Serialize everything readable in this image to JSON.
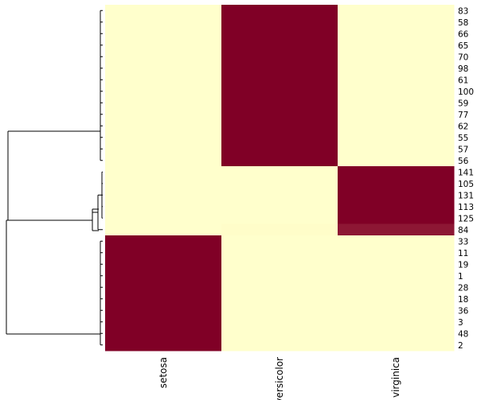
{
  "chart_data": {
    "type": "heatmap",
    "title": "",
    "xlabel": "",
    "ylabel": "",
    "columns": [
      "setosa",
      "versicolor",
      "virginica"
    ],
    "rows": [
      "83",
      "58",
      "66",
      "65",
      "70",
      "98",
      "61",
      "100",
      "59",
      "77",
      "62",
      "55",
      "57",
      "56",
      "141",
      "105",
      "131",
      "113",
      "125",
      "84",
      "33",
      "11",
      "19",
      "1",
      "28",
      "18",
      "36",
      "3",
      "48",
      "2"
    ],
    "values": [
      [
        0,
        1,
        0
      ],
      [
        0,
        1,
        0
      ],
      [
        0,
        1,
        0
      ],
      [
        0,
        1,
        0
      ],
      [
        0,
        1,
        0
      ],
      [
        0,
        1,
        0
      ],
      [
        0,
        1,
        0
      ],
      [
        0,
        1,
        0
      ],
      [
        0,
        1,
        0
      ],
      [
        0,
        1,
        0
      ],
      [
        0,
        1,
        0
      ],
      [
        0,
        1,
        0
      ],
      [
        0,
        1,
        0
      ],
      [
        0,
        1,
        0
      ],
      [
        0,
        0,
        1
      ],
      [
        0,
        0,
        1
      ],
      [
        0,
        0,
        1
      ],
      [
        0,
        0,
        1
      ],
      [
        0,
        0,
        1
      ],
      [
        0,
        0.05,
        0.95
      ],
      [
        1,
        0,
        0
      ],
      [
        1,
        0,
        0
      ],
      [
        1,
        0,
        0
      ],
      [
        1,
        0,
        0
      ],
      [
        1,
        0,
        0
      ],
      [
        1,
        0,
        0
      ],
      [
        1,
        0,
        0
      ],
      [
        1,
        0,
        0
      ],
      [
        1,
        0,
        0
      ],
      [
        1,
        0,
        0
      ]
    ],
    "colors": {
      "low": "#FFFFCC",
      "mid": "#FEE9B0",
      "high": "#800026"
    },
    "row_dendrogram": true,
    "legend": false,
    "grid": false
  }
}
